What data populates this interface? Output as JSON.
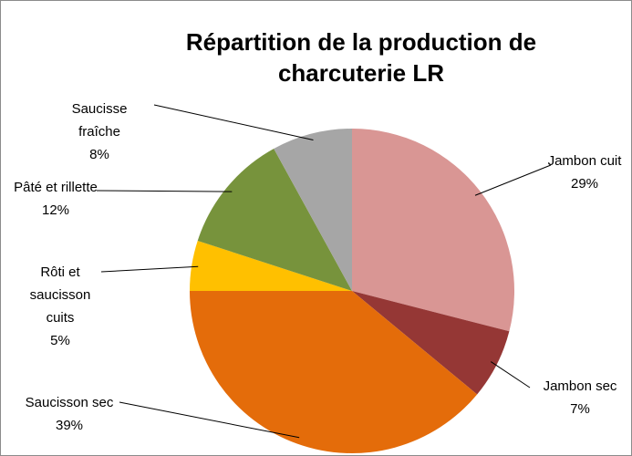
{
  "chart_data": {
    "type": "pie",
    "title": "Répartition de la production de charcuterie LR",
    "categories": [
      "Jambon cuit",
      "Jambon sec",
      "Saucisson sec",
      "Rôti et saucisson cuits",
      "Pâté et rillette",
      "Saucisse fraîche"
    ],
    "values": [
      29,
      7,
      39,
      5,
      12,
      8
    ],
    "value_labels": [
      "29%",
      "7%",
      "39%",
      "5%",
      "12%",
      "8%"
    ],
    "colors": [
      "#d99694",
      "#953735",
      "#e46c0a",
      "#ffc000",
      "#77933c",
      "#a6a6a6"
    ]
  }
}
